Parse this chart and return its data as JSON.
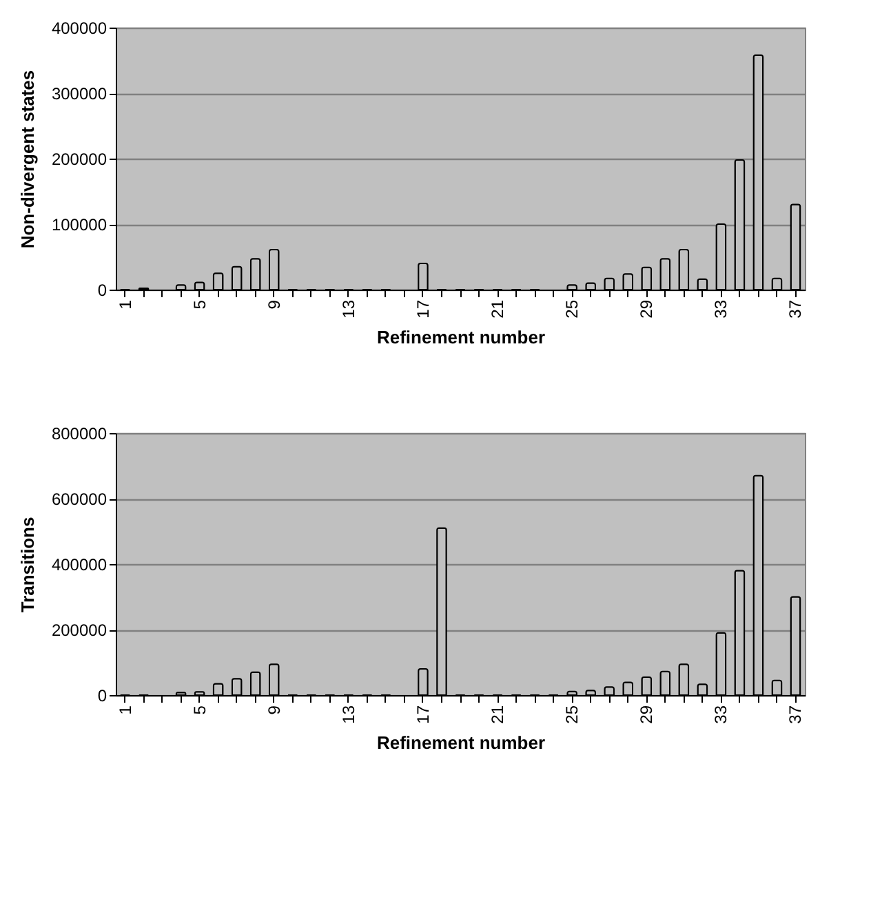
{
  "chart_data": [
    {
      "type": "bar",
      "xlabel": "Refinement number",
      "ylabel": "Non-divergent states",
      "categories": [
        "1",
        null,
        null,
        null,
        "5",
        null,
        null,
        null,
        "9",
        null,
        null,
        null,
        "13",
        null,
        null,
        null,
        "17",
        null,
        null,
        null,
        "21",
        null,
        null,
        null,
        "25",
        null,
        null,
        null,
        "29",
        null,
        null,
        null,
        "33",
        null,
        null,
        null,
        "37"
      ],
      "values": [
        0,
        2000,
        null,
        7000,
        11000,
        25000,
        35000,
        47000,
        61000,
        0,
        0,
        0,
        0,
        0,
        0,
        null,
        40000,
        0,
        0,
        0,
        0,
        0,
        0,
        null,
        7000,
        10000,
        17000,
        24000,
        34000,
        47000,
        61000,
        16000,
        100000,
        198000,
        358000,
        17000,
        130000
      ],
      "color": "#c0c0c0",
      "ylim": [
        0,
        400000
      ],
      "yticks": [
        0,
        100000,
        200000,
        300000,
        400000
      ],
      "grid": "y"
    },
    {
      "type": "bar",
      "xlabel": "Refinement number",
      "ylabel": "Transitions",
      "categories": [
        "1",
        null,
        null,
        null,
        "5",
        null,
        null,
        null,
        "9",
        null,
        null,
        null,
        "13",
        null,
        null,
        null,
        "17",
        null,
        null,
        null,
        "21",
        null,
        null,
        null,
        "25",
        null,
        null,
        null,
        "29",
        null,
        null,
        null,
        "33",
        null,
        null,
        null,
        "37"
      ],
      "values": [
        0,
        0,
        null,
        8000,
        10000,
        35000,
        50000,
        70000,
        94000,
        0,
        0,
        0,
        0,
        0,
        0,
        null,
        80000,
        510000,
        0,
        0,
        0,
        0,
        0,
        0,
        11000,
        14000,
        25000,
        39000,
        55000,
        72000,
        94000,
        33000,
        190000,
        380000,
        670000,
        45000,
        300000
      ],
      "color": "#c0c0c0",
      "ylim": [
        0,
        800000
      ],
      "yticks": [
        0,
        200000,
        400000,
        600000,
        800000
      ],
      "grid": "y"
    }
  ]
}
